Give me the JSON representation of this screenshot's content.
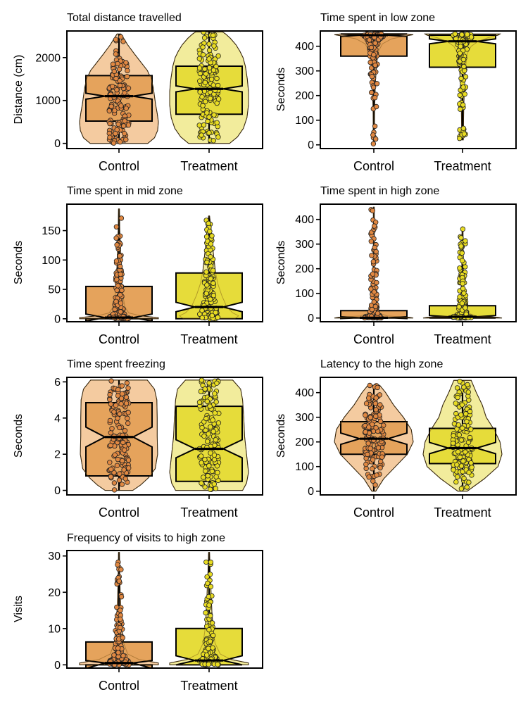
{
  "colors": {
    "control_violin": "#f4cba0",
    "control_box": "#e5a35c",
    "control_point": "#e08842",
    "treatment_violin": "#f2ec9c",
    "treatment_box": "#e6dc3a",
    "treatment_point": "#e8dc22"
  },
  "chart_data": [
    {
      "type": "violin-box",
      "title": "Total distance travelled",
      "ylabel": "Distance (cm)",
      "ylim": [
        -120,
        2620
      ],
      "yticks": [
        0,
        1000,
        2000
      ],
      "categories": [
        "Control",
        "Treatment"
      ],
      "series": [
        {
          "name": "Control",
          "range": [
            0,
            2550
          ],
          "q1": 520,
          "median": 1100,
          "q3": 1580,
          "notch": [
            1030,
            1170
          ],
          "violin": [
            [
              0,
              0.73
            ],
            [
              130,
              0.9
            ],
            [
              300,
              0.98
            ],
            [
              500,
              1.0
            ],
            [
              700,
              0.97
            ],
            [
              900,
              0.93
            ],
            [
              1100,
              0.9
            ],
            [
              1300,
              0.87
            ],
            [
              1500,
              0.82
            ],
            [
              1700,
              0.72
            ],
            [
              1900,
              0.55
            ],
            [
              2100,
              0.38
            ],
            [
              2300,
              0.22
            ],
            [
              2450,
              0.12
            ],
            [
              2550,
              0.05
            ]
          ]
        },
        {
          "name": "Treatment",
          "range": [
            0,
            2600
          ],
          "q1": 680,
          "median": 1270,
          "q3": 1800,
          "notch": [
            1200,
            1340
          ],
          "violin": [
            [
              0,
              0.52
            ],
            [
              150,
              0.72
            ],
            [
              350,
              0.87
            ],
            [
              600,
              0.96
            ],
            [
              900,
              1.0
            ],
            [
              1200,
              1.0
            ],
            [
              1500,
              0.97
            ],
            [
              1800,
              0.92
            ],
            [
              2000,
              0.86
            ],
            [
              2150,
              0.78
            ],
            [
              2300,
              0.68
            ],
            [
              2450,
              0.54
            ],
            [
              2550,
              0.42
            ],
            [
              2600,
              0.34
            ]
          ]
        }
      ]
    },
    {
      "type": "violin-box",
      "title": "Time spent in low zone",
      "ylabel": "Seconds",
      "ylim": [
        -15,
        462
      ],
      "yticks": [
        0,
        100,
        200,
        300,
        400
      ],
      "categories": [
        "Control",
        "Treatment"
      ],
      "series": [
        {
          "name": "Control",
          "range": [
            0,
            450
          ],
          "q1": 360,
          "median": 445,
          "q3": 450,
          "notch": [
            440,
            450
          ],
          "violin": [
            [
              0,
              0.01
            ],
            [
              150,
              0.02
            ],
            [
              250,
              0.04
            ],
            [
              330,
              0.07
            ],
            [
              380,
              0.12
            ],
            [
              410,
              0.22
            ],
            [
              430,
              0.45
            ],
            [
              440,
              0.75
            ],
            [
              447,
              1.0
            ],
            [
              450,
              0.85
            ]
          ]
        },
        {
          "name": "Treatment",
          "range": [
            20,
            450
          ],
          "q1": 315,
          "median": 420,
          "q3": 445,
          "notch": [
            410,
            430
          ],
          "violin": [
            [
              20,
              0.02
            ],
            [
              150,
              0.03
            ],
            [
              250,
              0.05
            ],
            [
              320,
              0.08
            ],
            [
              370,
              0.12
            ],
            [
              400,
              0.22
            ],
            [
              420,
              0.4
            ],
            [
              435,
              0.65
            ],
            [
              445,
              0.9
            ],
            [
              450,
              0.95
            ]
          ]
        }
      ]
    },
    {
      "type": "violin-box",
      "title": "Time spent in mid zone",
      "ylabel": "Seconds",
      "ylim": [
        -5,
        195
      ],
      "yticks": [
        0,
        50,
        100,
        150
      ],
      "categories": [
        "Control",
        "Treatment"
      ],
      "series": [
        {
          "name": "Control",
          "range": [
            0,
            187
          ],
          "q1": 0,
          "median": 2,
          "q3": 55,
          "notch": [
            -4,
            8
          ],
          "violin": [
            [
              0,
              1.0
            ],
            [
              2,
              1.0
            ],
            [
              5,
              0.55
            ],
            [
              10,
              0.25
            ],
            [
              20,
              0.15
            ],
            [
              40,
              0.1
            ],
            [
              60,
              0.07
            ],
            [
              90,
              0.05
            ],
            [
              120,
              0.04
            ],
            [
              150,
              0.02
            ],
            [
              187,
              0.01
            ]
          ]
        },
        {
          "name": "Treatment",
          "range": [
            0,
            175
          ],
          "q1": 0,
          "median": 20,
          "q3": 78,
          "notch": [
            12,
            28
          ],
          "violin": [
            [
              0,
              0.65
            ],
            [
              5,
              0.75
            ],
            [
              10,
              0.6
            ],
            [
              20,
              0.45
            ],
            [
              40,
              0.32
            ],
            [
              60,
              0.22
            ],
            [
              80,
              0.16
            ],
            [
              110,
              0.11
            ],
            [
              140,
              0.07
            ],
            [
              160,
              0.04
            ],
            [
              175,
              0.01
            ]
          ]
        }
      ]
    },
    {
      "type": "violin-box",
      "title": "Time spent in high zone",
      "ylabel": "Seconds",
      "ylim": [
        -15,
        462
      ],
      "yticks": [
        0,
        100,
        200,
        300,
        400
      ],
      "categories": [
        "Control",
        "Treatment"
      ],
      "series": [
        {
          "name": "Control",
          "range": [
            0,
            450
          ],
          "q1": 0,
          "median": 1,
          "q3": 30,
          "notch": [
            -2,
            5
          ],
          "violin": [
            [
              0,
              1.0
            ],
            [
              3,
              0.9
            ],
            [
              8,
              0.35
            ],
            [
              20,
              0.12
            ],
            [
              40,
              0.05
            ],
            [
              80,
              0.03
            ],
            [
              150,
              0.02
            ],
            [
              300,
              0.01
            ],
            [
              450,
              0.005
            ]
          ]
        },
        {
          "name": "Treatment",
          "range": [
            0,
            370
          ],
          "q1": 0,
          "median": 5,
          "q3": 50,
          "notch": [
            0,
            10
          ],
          "violin": [
            [
              0,
              1.0
            ],
            [
              3,
              0.9
            ],
            [
              8,
              0.35
            ],
            [
              20,
              0.14
            ],
            [
              50,
              0.07
            ],
            [
              100,
              0.04
            ],
            [
              200,
              0.02
            ],
            [
              370,
              0.01
            ]
          ]
        }
      ]
    },
    {
      "type": "violin-box",
      "title": "Time spent freezing",
      "ylabel": "Seconds",
      "ylim": [
        -0.25,
        6.25
      ],
      "yticks": [
        0,
        2,
        4,
        6
      ],
      "categories": [
        "Control",
        "Treatment"
      ],
      "series": [
        {
          "name": "Control",
          "range": [
            0,
            6.1
          ],
          "q1": 0.8,
          "median": 2.95,
          "q3": 4.85,
          "notch": [
            2.4,
            3.5
          ],
          "violin": [
            [
              0,
              0.35
            ],
            [
              0.3,
              0.55
            ],
            [
              0.7,
              0.75
            ],
            [
              1.2,
              0.92
            ],
            [
              2,
              0.98
            ],
            [
              3,
              0.97
            ],
            [
              4,
              0.97
            ],
            [
              5,
              0.96
            ],
            [
              5.6,
              0.9
            ],
            [
              6.1,
              0.72
            ]
          ]
        },
        {
          "name": "Treatment",
          "range": [
            0,
            6.1
          ],
          "q1": 0.5,
          "median": 2.3,
          "q3": 4.65,
          "notch": [
            1.8,
            2.8
          ],
          "violin": [
            [
              0,
              0.85
            ],
            [
              0.4,
              0.95
            ],
            [
              1,
              1.0
            ],
            [
              2,
              0.95
            ],
            [
              3,
              0.9
            ],
            [
              4,
              0.88
            ],
            [
              5,
              0.85
            ],
            [
              5.6,
              0.8
            ],
            [
              6.1,
              0.6
            ]
          ]
        }
      ]
    },
    {
      "type": "violin-box",
      "title": "Latency to the high zone",
      "ylabel": "Seconds",
      "ylim": [
        -15,
        462
      ],
      "yticks": [
        0,
        100,
        200,
        300,
        400
      ],
      "categories": [
        "Control",
        "Treatment"
      ],
      "series": [
        {
          "name": "Control",
          "range": [
            0,
            430
          ],
          "q1": 150,
          "median": 213,
          "q3": 282,
          "notch": [
            190,
            236
          ],
          "violin": [
            [
              0,
              0.05
            ],
            [
              50,
              0.25
            ],
            [
              100,
              0.55
            ],
            [
              150,
              0.85
            ],
            [
              200,
              1.0
            ],
            [
              250,
              0.95
            ],
            [
              300,
              0.75
            ],
            [
              350,
              0.5
            ],
            [
              400,
              0.3
            ],
            [
              430,
              0.15
            ]
          ]
        },
        {
          "name": "Treatment",
          "range": [
            0,
            450
          ],
          "q1": 112,
          "median": 175,
          "q3": 255,
          "notch": [
            152,
            198
          ],
          "violin": [
            [
              0,
              0.12
            ],
            [
              50,
              0.55
            ],
            [
              100,
              0.9
            ],
            [
              150,
              1.0
            ],
            [
              200,
              0.95
            ],
            [
              250,
              0.8
            ],
            [
              300,
              0.6
            ],
            [
              350,
              0.5
            ],
            [
              400,
              0.35
            ],
            [
              450,
              0.22
            ]
          ]
        }
      ]
    },
    {
      "type": "violin-box",
      "title": "Frequency of visits to high zone",
      "ylabel": "Visits",
      "ylim": [
        -0.9,
        31.5
      ],
      "yticks": [
        0,
        10,
        20,
        30
      ],
      "categories": [
        "Control",
        "Treatment"
      ],
      "series": [
        {
          "name": "Control",
          "range": [
            0,
            31
          ],
          "q1": 0,
          "median": 0.5,
          "q3": 6.3,
          "notch": [
            -1,
            1.2
          ],
          "violin": [
            [
              0,
              1.0
            ],
            [
              0.5,
              1.0
            ],
            [
              1.5,
              0.5
            ],
            [
              3,
              0.22
            ],
            [
              6,
              0.12
            ],
            [
              10,
              0.08
            ],
            [
              15,
              0.05
            ],
            [
              20,
              0.03
            ],
            [
              25,
              0.02
            ],
            [
              31,
              0.01
            ]
          ]
        },
        {
          "name": "Treatment",
          "range": [
            0,
            31
          ],
          "q1": 0,
          "median": 1.2,
          "q3": 10,
          "notch": [
            0,
            2.5
          ],
          "violin": [
            [
              0,
              1.0
            ],
            [
              0.5,
              1.0
            ],
            [
              1.5,
              0.55
            ],
            [
              3,
              0.28
            ],
            [
              6,
              0.15
            ],
            [
              10,
              0.1
            ],
            [
              15,
              0.07
            ],
            [
              20,
              0.05
            ],
            [
              25,
              0.03
            ],
            [
              31,
              0.01
            ]
          ]
        }
      ]
    }
  ]
}
